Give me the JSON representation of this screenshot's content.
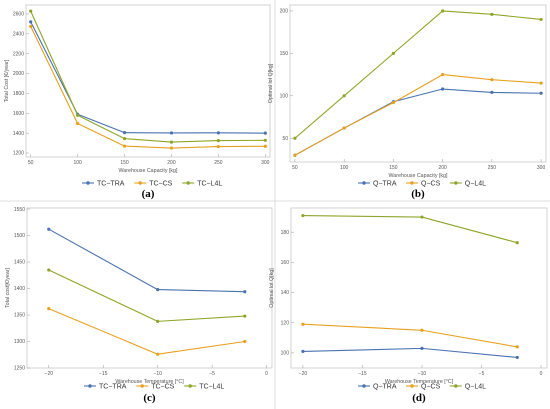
{
  "colors": {
    "tra": "#4a72b0",
    "cs": "#e8a020",
    "l4l": "#8da62a"
  },
  "chart_data": [
    {
      "type": "line",
      "caption": "(a)",
      "xlabel": "Warehouse Capacity [kg]",
      "ylabel": "Total Cost [€/year]",
      "x": [
        50,
        100,
        150,
        200,
        250,
        300
      ],
      "xlim": [
        45,
        305
      ],
      "ylim": [
        1160,
        2690
      ],
      "xticks": [
        50,
        100,
        150,
        200,
        250,
        300
      ],
      "yticks": [
        1200,
        1400,
        1600,
        1800,
        2000,
        2200,
        2400,
        2600
      ],
      "series": [
        {
          "name": "TC−TRA",
          "color_key": "tra",
          "values": [
            2520,
            1590,
            1405,
            1402,
            1403,
            1400
          ]
        },
        {
          "name": "TC−CS",
          "color_key": "cs",
          "values": [
            2475,
            1497,
            1270,
            1250,
            1265,
            1268
          ]
        },
        {
          "name": "TC−L4L",
          "color_key": "l4l",
          "values": [
            2628,
            1580,
            1345,
            1310,
            1325,
            1328
          ]
        }
      ]
    },
    {
      "type": "line",
      "caption": "(b)",
      "xlabel": "Warehouse Capacity [kg]",
      "ylabel": "Optimal lot Q[kg]",
      "x": [
        50,
        100,
        150,
        200,
        250,
        300
      ],
      "xlim": [
        45,
        305
      ],
      "ylim": [
        22,
        207
      ],
      "xticks": [
        50,
        100,
        150,
        200,
        250,
        300
      ],
      "yticks": [
        50,
        100,
        150,
        200
      ],
      "series": [
        {
          "name": "Q−TRA",
          "color_key": "tra",
          "values": [
            30,
            62,
            93,
            108,
            104,
            103
          ]
        },
        {
          "name": "Q−CS",
          "color_key": "cs",
          "values": [
            30,
            62,
            92,
            125,
            119,
            115
          ]
        },
        {
          "name": "Q−L4L",
          "color_key": "l4l",
          "values": [
            50,
            100,
            150,
            200,
            196,
            190
          ]
        }
      ]
    },
    {
      "type": "line",
      "caption": "(c)",
      "xlabel": "Warehouse Temperature [°C]",
      "ylabel": "Total cost[€/year]",
      "x": [
        -20,
        -10,
        -2
      ],
      "xlim": [
        -22,
        0.5
      ],
      "ylim": [
        1250,
        1552
      ],
      "xticks": [
        -20,
        -15,
        -10,
        -5,
        0
      ],
      "yticks": [
        1250,
        1300,
        1350,
        1400,
        1450,
        1500,
        1550
      ],
      "series": [
        {
          "name": "TC−TRA",
          "color_key": "tra",
          "values": [
            1512,
            1398,
            1394
          ]
        },
        {
          "name": "TC−CS",
          "color_key": "cs",
          "values": [
            1362,
            1276,
            1300
          ]
        },
        {
          "name": "TC−L4L",
          "color_key": "l4l",
          "values": [
            1435,
            1338,
            1348
          ]
        }
      ]
    },
    {
      "type": "line",
      "caption": "(d)",
      "xlabel": "Warehouse Temperature [°C]",
      "ylabel": "Optimal lot Q[kg]",
      "x": [
        -20,
        -10,
        -2
      ],
      "xlim": [
        -21,
        0.5
      ],
      "ylim": [
        90,
        196
      ],
      "xticks": [
        -20,
        -15,
        -10,
        -5,
        0
      ],
      "yticks": [
        100,
        120,
        140,
        160,
        180
      ],
      "series": [
        {
          "name": "Q−TRA",
          "color_key": "tra",
          "values": [
            101,
            103,
            97
          ]
        },
        {
          "name": "Q−CS",
          "color_key": "cs",
          "values": [
            119,
            115,
            104
          ]
        },
        {
          "name": "Q−L4L",
          "color_key": "l4l",
          "values": [
            191,
            190,
            173
          ]
        }
      ]
    }
  ]
}
